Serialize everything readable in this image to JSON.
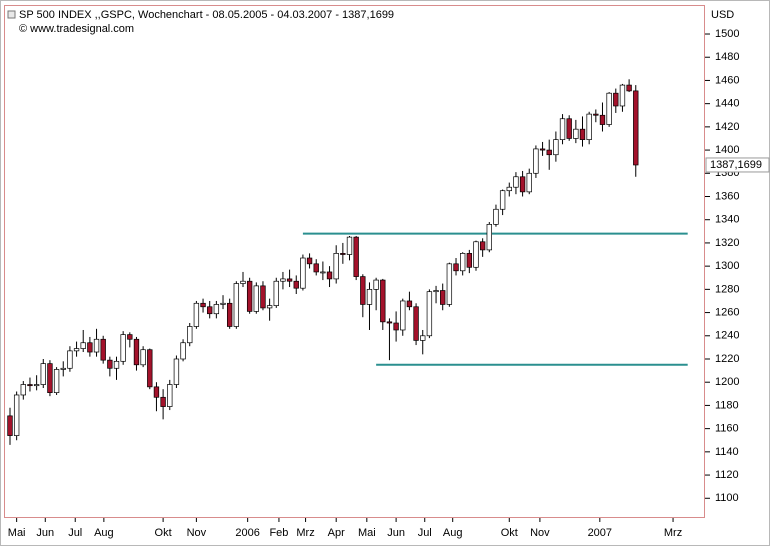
{
  "chart_data": {
    "type": "candlestick",
    "title": "SP 500 INDEX ,,GSPC, Wochenchart - 08.05.2005 - 04.03.2007 - 1387,1699",
    "subtitle": "© www.tradesignal.com",
    "y_axis_label": "USD",
    "last_label": "1387,1699",
    "up_color": "#ffffff",
    "down_color": "#a3122b",
    "level_color": "#2a8f8f",
    "ylim": [
      1083,
      1525
    ],
    "yticks": [
      1100,
      1120,
      1140,
      1160,
      1180,
      1200,
      1220,
      1240,
      1260,
      1280,
      1300,
      1320,
      1340,
      1360,
      1380,
      1400,
      1420,
      1440,
      1460,
      1480,
      1500
    ],
    "xlim": [
      -0.9,
      104.4
    ],
    "xticks": [
      {
        "value": 1,
        "label": "Mai"
      },
      {
        "value": 5.3,
        "label": "Jun"
      },
      {
        "value": 9.8,
        "label": "Jul"
      },
      {
        "value": 14.1,
        "label": "Aug"
      },
      {
        "value": 23,
        "label": "Okt"
      },
      {
        "value": 28,
        "label": "Nov"
      },
      {
        "value": 35.7,
        "label": "2006"
      },
      {
        "value": 40.4,
        "label": "Feb"
      },
      {
        "value": 44.4,
        "label": "Mrz"
      },
      {
        "value": 49,
        "label": "Apr"
      },
      {
        "value": 53.6,
        "label": "Mai"
      },
      {
        "value": 58,
        "label": "Jun"
      },
      {
        "value": 62.3,
        "label": "Jul"
      },
      {
        "value": 66.5,
        "label": "Aug"
      },
      {
        "value": 75,
        "label": "Okt"
      },
      {
        "value": 79.6,
        "label": "Nov"
      },
      {
        "value": 88.6,
        "label": "2007"
      },
      {
        "value": 99.6,
        "label": "Mrz"
      }
    ],
    "levels": [
      {
        "value": 1328,
        "from": 44,
        "to": 101.8
      },
      {
        "value": 1215,
        "from": 55,
        "to": 101.8
      }
    ],
    "open": [
      1171,
      1154,
      1189,
      1198,
      1197,
      1198,
      1216,
      1191,
      1211,
      1212,
      1227,
      1229,
      1234,
      1226,
      1237,
      1219,
      1212,
      1218,
      1241,
      1237,
      1215,
      1228,
      1196,
      1187,
      1179,
      1198,
      1220,
      1234,
      1248,
      1268,
      1265,
      1259,
      1267,
      1268,
      1248,
      1285,
      1287,
      1261,
      1283,
      1264,
      1266,
      1287,
      1289,
      1287,
      1281,
      1307,
      1302,
      1295,
      1295,
      1289,
      1311,
      1310,
      1325,
      1291,
      1267,
      1280,
      1288,
      1252,
      1251,
      1245,
      1270,
      1265,
      1236,
      1240,
      1278,
      1279,
      1267,
      1302,
      1296,
      1311,
      1299,
      1321,
      1314,
      1336,
      1349,
      1365,
      1368,
      1377,
      1364,
      1380,
      1401,
      1400,
      1396,
      1409,
      1427,
      1410,
      1418,
      1409,
      1431,
      1430,
      1422,
      1449,
      1438,
      1456,
      1451
    ],
    "high": [
      1178,
      1192,
      1201,
      1204,
      1206,
      1220,
      1219,
      1213,
      1218,
      1231,
      1235,
      1245,
      1239,
      1246,
      1240,
      1222,
      1222,
      1244,
      1243,
      1239,
      1231,
      1229,
      1200,
      1194,
      1202,
      1223,
      1237,
      1251,
      1270,
      1272,
      1270,
      1270,
      1275,
      1272,
      1287,
      1295,
      1290,
      1286,
      1287,
      1272,
      1290,
      1295,
      1297,
      1292,
      1310,
      1311,
      1306,
      1304,
      1300,
      1318,
      1320,
      1326,
      1326,
      1293,
      1286,
      1290,
      1289,
      1255,
      1261,
      1272,
      1278,
      1268,
      1245,
      1280,
      1283,
      1285,
      1303,
      1307,
      1312,
      1314,
      1322,
      1324,
      1338,
      1353,
      1366,
      1372,
      1381,
      1382,
      1384,
      1404,
      1407,
      1409,
      1416,
      1431,
      1430,
      1426,
      1429,
      1433,
      1435,
      1441,
      1450,
      1453,
      1457,
      1461,
      1456
    ],
    "low": [
      1146,
      1150,
      1185,
      1192,
      1193,
      1195,
      1188,
      1189,
      1205,
      1209,
      1222,
      1226,
      1222,
      1222,
      1216,
      1205,
      1202,
      1215,
      1230,
      1210,
      1213,
      1194,
      1175,
      1168,
      1176,
      1195,
      1218,
      1231,
      1246,
      1260,
      1255,
      1255,
      1263,
      1246,
      1246,
      1282,
      1259,
      1259,
      1262,
      1253,
      1264,
      1280,
      1282,
      1276,
      1279,
      1298,
      1292,
      1288,
      1282,
      1285,
      1302,
      1305,
      1288,
      1256,
      1245,
      1262,
      1245,
      1219,
      1235,
      1240,
      1262,
      1232,
      1224,
      1238,
      1268,
      1262,
      1265,
      1292,
      1292,
      1294,
      1296,
      1308,
      1312,
      1334,
      1344,
      1360,
      1362,
      1360,
      1362,
      1376,
      1395,
      1383,
      1390,
      1405,
      1408,
      1406,
      1403,
      1405,
      1424,
      1416,
      1420,
      1432,
      1433,
      1450,
      1377
    ],
    "close": [
      1154,
      1189,
      1198,
      1197,
      1198,
      1216,
      1191,
      1211,
      1212,
      1227,
      1229,
      1234,
      1226,
      1237,
      1219,
      1212,
      1218,
      1241,
      1237,
      1215,
      1228,
      1196,
      1187,
      1179,
      1198,
      1220,
      1234,
      1248,
      1268,
      1265,
      1259,
      1267,
      1268,
      1248,
      1285,
      1287,
      1261,
      1283,
      1264,
      1266,
      1287,
      1289,
      1287,
      1281,
      1307,
      1302,
      1295,
      1295,
      1289,
      1311,
      1310,
      1325,
      1291,
      1267,
      1280,
      1288,
      1252,
      1251,
      1245,
      1270,
      1265,
      1236,
      1240,
      1278,
      1279,
      1267,
      1302,
      1296,
      1311,
      1299,
      1321,
      1314,
      1336,
      1349,
      1365,
      1368,
      1377,
      1364,
      1380,
      1401,
      1400,
      1396,
      1409,
      1427,
      1410,
      1418,
      1409,
      1431,
      1430,
      1422,
      1449,
      1438,
      1456,
      1451,
      1387.17
    ]
  }
}
